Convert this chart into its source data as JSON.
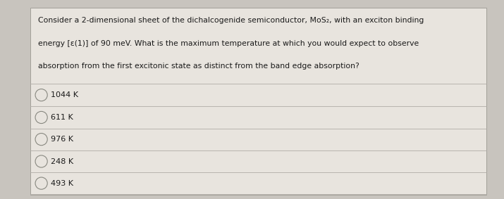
{
  "question_lines": [
    "Consider a 2-dimensional sheet of the dichalcogenide semiconductor, MoS₂, with an exciton binding",
    "energy [ε(1)] of 90 meV. What is the maximum temperature at which you would expect to observe",
    "absorption from the first excitonic state as distinct from the band edge absorption?"
  ],
  "options": [
    "1044 K",
    "611 K",
    "976 K",
    "248 K",
    "493 K"
  ],
  "bg_color": "#c8c4be",
  "card_color": "#e8e4de",
  "text_color": "#1a1a1a",
  "option_text_color": "#1a1a1a",
  "divider_color": "#b0aca6",
  "circle_edge_color": "#888880",
  "question_fontsize": 7.8,
  "option_fontsize": 8.0
}
